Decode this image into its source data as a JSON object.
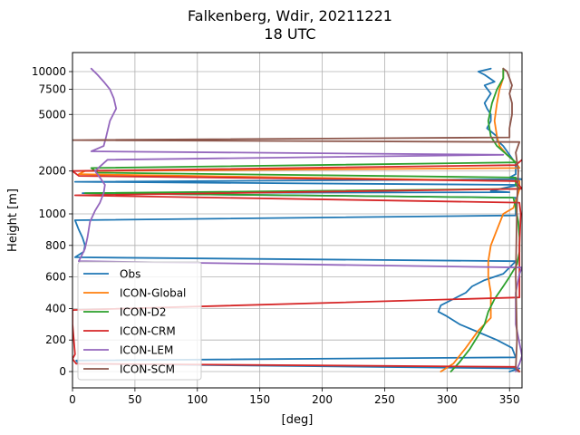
{
  "chart_data": {
    "type": "line",
    "title": "Falkenberg, Wdir, 20211221",
    "subtitle": "18 UTC",
    "xlabel": "[deg]",
    "ylabel": "Height [m]",
    "xlim": [
      0,
      360
    ],
    "xticks": [
      0,
      50,
      100,
      150,
      200,
      250,
      300,
      350
    ],
    "yticks": [
      {
        "value": 0,
        "label": "0"
      },
      {
        "value": 200,
        "label": "200"
      },
      {
        "value": 400,
        "label": "400"
      },
      {
        "value": 600,
        "label": "600"
      },
      {
        "value": 800,
        "label": "800"
      },
      {
        "value": 1000,
        "label": "1000"
      },
      {
        "value": 2000,
        "label": "2000"
      },
      {
        "value": 5000,
        "label": "5000"
      },
      {
        "value": 7500,
        "label": "7500"
      },
      {
        "value": 10000,
        "label": "10000"
      }
    ],
    "yscale": "piecewise: linear 0-1000 m, logarithmic above 1000 m",
    "grid": true,
    "legend_position": "lower-left",
    "series": [
      {
        "name": "Obs",
        "color": "#1f77b4",
        "points": [
          [
            350,
            0
          ],
          [
            358,
            20
          ],
          [
            5,
            50
          ],
          [
            3,
            70
          ],
          [
            355,
            90
          ],
          [
            352,
            150
          ],
          [
            340,
            200
          ],
          [
            325,
            250
          ],
          [
            310,
            300
          ],
          [
            300,
            350
          ],
          [
            293,
            380
          ],
          [
            295,
            420
          ],
          [
            305,
            460
          ],
          [
            315,
            500
          ],
          [
            320,
            540
          ],
          [
            330,
            580
          ],
          [
            345,
            620
          ],
          [
            350,
            660
          ],
          [
            355,
            700
          ],
          [
            2,
            725
          ],
          [
            9,
            760
          ],
          [
            10,
            800
          ],
          [
            8,
            850
          ],
          [
            5,
            900
          ],
          [
            2,
            960
          ],
          [
            355,
            990
          ],
          [
            355,
            1300
          ],
          [
            8,
            1400
          ],
          [
            350,
            1420
          ],
          [
            335,
            1450
          ],
          [
            350,
            1550
          ],
          [
            358,
            1600
          ],
          [
            2,
            1680
          ],
          [
            360,
            1750
          ],
          [
            350,
            1800
          ],
          [
            355,
            1900
          ],
          [
            355,
            2050
          ],
          [
            355,
            2250
          ],
          [
            350,
            2600
          ],
          [
            345,
            3000
          ],
          [
            340,
            3300
          ],
          [
            340,
            3500
          ],
          [
            332,
            4000
          ],
          [
            335,
            4500
          ],
          [
            335,
            5000
          ],
          [
            332,
            5500
          ],
          [
            330,
            6000
          ],
          [
            335,
            7000
          ],
          [
            330,
            8000
          ],
          [
            338,
            8500
          ],
          [
            330,
            9500
          ],
          [
            325,
            10000
          ],
          [
            335,
            10500
          ]
        ]
      },
      {
        "name": "ICON-Global",
        "color": "#ff7f0e",
        "points": [
          [
            295,
            0
          ],
          [
            305,
            50
          ],
          [
            315,
            150
          ],
          [
            325,
            260
          ],
          [
            335,
            340
          ],
          [
            335,
            400
          ],
          [
            335,
            500
          ],
          [
            333,
            600
          ],
          [
            333,
            700
          ],
          [
            335,
            800
          ],
          [
            340,
            900
          ],
          [
            345,
            1000
          ],
          [
            353,
            1100
          ],
          [
            356,
            1300
          ],
          [
            358,
            1500
          ],
          [
            358,
            1700
          ],
          [
            5,
            1900
          ],
          [
            10,
            2000
          ],
          [
            358,
            2100
          ],
          [
            355,
            2300
          ],
          [
            348,
            2600
          ],
          [
            342,
            3000
          ],
          [
            340,
            3500
          ],
          [
            338,
            4500
          ],
          [
            340,
            6000
          ],
          [
            342,
            7500
          ],
          [
            345,
            9000
          ],
          [
            345,
            10500
          ]
        ]
      },
      {
        "name": "ICON-D2",
        "color": "#2ca02c",
        "points": [
          [
            303,
            0
          ],
          [
            310,
            60
          ],
          [
            318,
            140
          ],
          [
            325,
            230
          ],
          [
            330,
            300
          ],
          [
            333,
            380
          ],
          [
            338,
            460
          ],
          [
            345,
            540
          ],
          [
            350,
            600
          ],
          [
            356,
            680
          ],
          [
            358,
            760
          ],
          [
            358,
            850
          ],
          [
            357,
            950
          ],
          [
            355,
            1100
          ],
          [
            353,
            1300
          ],
          [
            10,
            1400
          ],
          [
            358,
            1500
          ],
          [
            355,
            1600
          ],
          [
            355,
            1800
          ],
          [
            20,
            1950
          ],
          [
            15,
            2100
          ],
          [
            355,
            2300
          ],
          [
            348,
            2600
          ],
          [
            340,
            3000
          ],
          [
            335,
            3500
          ],
          [
            333,
            4500
          ],
          [
            336,
            6000
          ],
          [
            340,
            7500
          ],
          [
            345,
            9000
          ],
          [
            345,
            10500
          ]
        ]
      },
      {
        "name": "ICON-CRM",
        "color": "#d62728",
        "points": [
          [
            358,
            0
          ],
          [
            355,
            30
          ],
          [
            3,
            50
          ],
          [
            0,
            80
          ],
          [
            2,
            110
          ],
          [
            0,
            300
          ],
          [
            0,
            390
          ],
          [
            358,
            470
          ],
          [
            358,
            800
          ],
          [
            359,
            1000
          ],
          [
            358,
            1200
          ],
          [
            2,
            1350
          ],
          [
            360,
            1500
          ],
          [
            355,
            1700
          ],
          [
            5,
            1850
          ],
          [
            0,
            2000
          ],
          [
            355,
            2200
          ],
          [
            360,
            2400
          ]
        ]
      },
      {
        "name": "ICON-LEM",
        "color": "#9467bd",
        "points": [
          [
            355,
            0
          ],
          [
            358,
            50
          ],
          [
            360,
            100
          ],
          [
            355,
            300
          ],
          [
            355,
            500
          ],
          [
            358,
            620
          ],
          [
            360,
            660
          ],
          [
            5,
            700
          ],
          [
            7,
            730
          ],
          [
            10,
            780
          ],
          [
            12,
            850
          ],
          [
            14,
            950
          ],
          [
            18,
            1050
          ],
          [
            22,
            1200
          ],
          [
            25,
            1400
          ],
          [
            26,
            1600
          ],
          [
            22,
            1800
          ],
          [
            18,
            2000
          ],
          [
            28,
            2400
          ],
          [
            345,
            2600
          ],
          [
            15,
            2750
          ],
          [
            25,
            3000
          ],
          [
            27,
            3500
          ],
          [
            30,
            4500
          ],
          [
            35,
            5500
          ],
          [
            33,
            6500
          ],
          [
            30,
            7500
          ],
          [
            25,
            8500
          ],
          [
            20,
            9500
          ],
          [
            15,
            10500
          ]
        ]
      },
      {
        "name": "ICON-SCM",
        "color": "#8c564b",
        "points": [
          [
            357,
            0
          ],
          [
            355,
            20
          ],
          [
            356,
            200
          ],
          [
            355,
            600
          ],
          [
            356,
            1200
          ],
          [
            357,
            2000
          ],
          [
            355,
            2700
          ],
          [
            358,
            3200
          ],
          [
            0,
            3300
          ],
          [
            350,
            3450
          ],
          [
            350,
            4000
          ],
          [
            352,
            5000
          ],
          [
            352,
            6000
          ],
          [
            350,
            7000
          ],
          [
            352,
            8000
          ],
          [
            350,
            9000
          ],
          [
            348,
            10000
          ],
          [
            345,
            10500
          ]
        ]
      }
    ]
  }
}
